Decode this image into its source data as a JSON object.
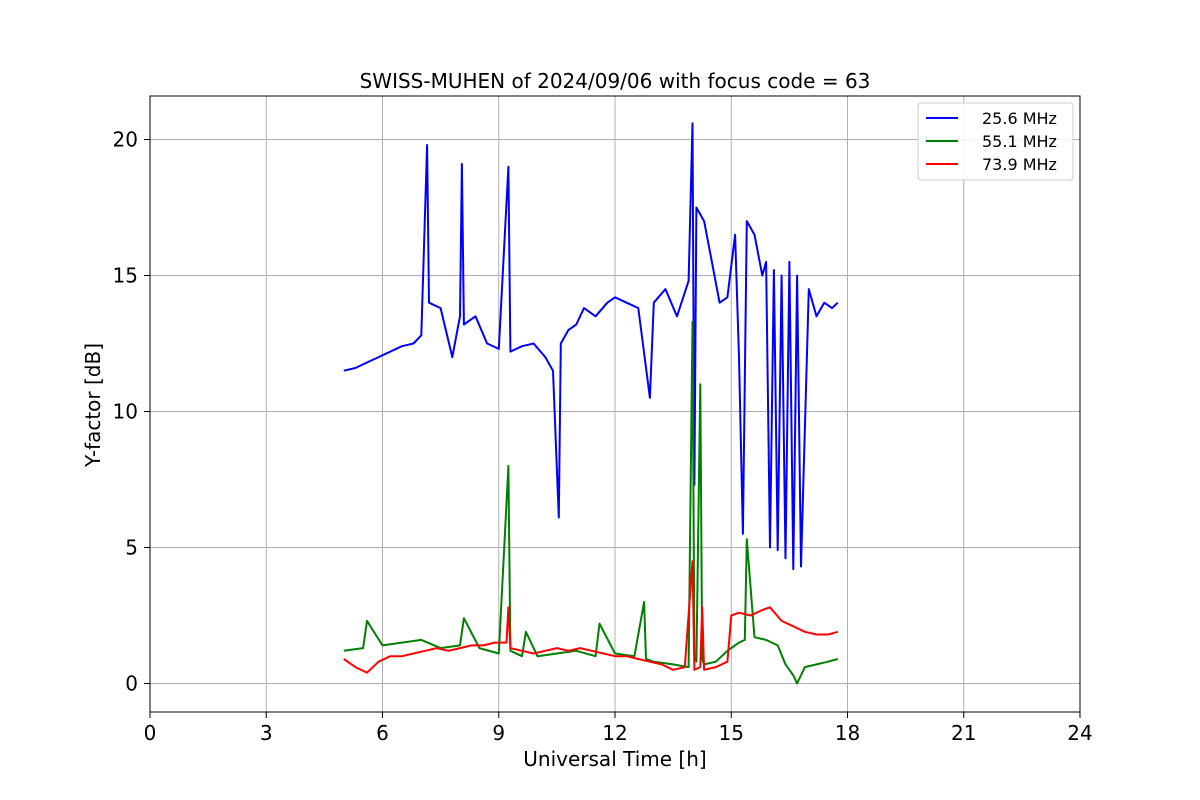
{
  "chart_data": {
    "type": "line",
    "title": "SWISS-MUHEN of 2024/09/06 with focus code = 63",
    "xlabel": "Universal Time [h]",
    "ylabel": "Y-factor [dB]",
    "xlim": [
      0,
      24
    ],
    "ylim": [
      -1.05,
      21.6
    ],
    "xticks": [
      0,
      3,
      6,
      9,
      12,
      15,
      18,
      21,
      24
    ],
    "yticks": [
      0,
      5,
      10,
      15,
      20
    ],
    "grid": true,
    "legend_position": "top-right",
    "series": [
      {
        "name": "25.6 MHz",
        "color": "#0000ff",
        "x": [
          5.0,
          5.3,
          5.6,
          5.9,
          6.2,
          6.5,
          6.8,
          7.0,
          7.15,
          7.2,
          7.5,
          7.8,
          8.0,
          8.05,
          8.1,
          8.4,
          8.7,
          9.0,
          9.25,
          9.3,
          9.6,
          9.9,
          10.2,
          10.4,
          10.55,
          10.6,
          10.8,
          11.0,
          11.2,
          11.5,
          11.8,
          12.0,
          12.3,
          12.6,
          12.9,
          13.0,
          13.3,
          13.6,
          13.9,
          14.0,
          14.05,
          14.1,
          14.3,
          14.5,
          14.7,
          14.9,
          15.1,
          15.2,
          15.3,
          15.4,
          15.6,
          15.8,
          15.9,
          16.0,
          16.1,
          16.2,
          16.3,
          16.4,
          16.5,
          16.6,
          16.7,
          16.8,
          17.0,
          17.2,
          17.4,
          17.6,
          17.75
        ],
        "y": [
          11.5,
          11.6,
          11.8,
          12.0,
          12.2,
          12.4,
          12.5,
          12.8,
          19.8,
          14.0,
          13.8,
          12.0,
          13.5,
          19.1,
          13.2,
          13.5,
          12.5,
          12.3,
          19.0,
          12.2,
          12.4,
          12.5,
          12.0,
          11.5,
          6.1,
          12.5,
          13.0,
          13.2,
          13.8,
          13.5,
          14.0,
          14.2,
          14.0,
          13.8,
          10.5,
          14.0,
          14.5,
          13.5,
          14.8,
          20.6,
          7.3,
          17.5,
          17.0,
          15.5,
          14.0,
          14.2,
          16.5,
          12.0,
          5.5,
          17.0,
          16.5,
          15.0,
          15.5,
          5.0,
          15.2,
          4.9,
          15.0,
          4.6,
          15.5,
          4.2,
          15.0,
          4.3,
          14.5,
          13.5,
          14.0,
          13.8,
          14.0
        ]
      },
      {
        "name": "55.1 MHz",
        "color": "#008000",
        "x": [
          5.0,
          5.5,
          5.6,
          6.0,
          6.5,
          7.0,
          7.5,
          8.0,
          8.1,
          8.5,
          9.0,
          9.25,
          9.3,
          9.6,
          9.7,
          10.0,
          10.5,
          11.0,
          11.5,
          11.6,
          12.0,
          12.5,
          12.75,
          12.8,
          13.0,
          13.5,
          13.9,
          14.0,
          14.05,
          14.1,
          14.2,
          14.25,
          14.3,
          14.6,
          14.9,
          15.2,
          15.35,
          15.4,
          15.6,
          15.9,
          16.2,
          16.4,
          16.6,
          16.7,
          16.9,
          17.2,
          17.5,
          17.75
        ],
        "y": [
          1.2,
          1.3,
          2.3,
          1.4,
          1.5,
          1.6,
          1.3,
          1.4,
          2.4,
          1.3,
          1.1,
          8.0,
          1.2,
          1.0,
          1.9,
          1.0,
          1.1,
          1.2,
          1.0,
          2.2,
          1.1,
          1.0,
          3.0,
          0.9,
          0.8,
          0.7,
          0.6,
          13.3,
          1.0,
          0.8,
          11.0,
          0.9,
          0.7,
          0.8,
          1.2,
          1.5,
          1.6,
          5.3,
          1.7,
          1.6,
          1.4,
          0.7,
          0.3,
          0.0,
          0.6,
          0.7,
          0.8,
          0.9
        ]
      },
      {
        "name": "73.9 MHz",
        "color": "#ff0000",
        "x": [
          5.0,
          5.3,
          5.6,
          5.9,
          6.2,
          6.5,
          6.8,
          7.1,
          7.4,
          7.7,
          8.0,
          8.3,
          8.6,
          8.9,
          9.2,
          9.25,
          9.3,
          9.6,
          9.9,
          10.2,
          10.5,
          10.8,
          11.1,
          11.4,
          11.7,
          12.0,
          12.3,
          12.6,
          12.9,
          13.2,
          13.5,
          13.8,
          14.0,
          14.05,
          14.2,
          14.25,
          14.3,
          14.6,
          14.9,
          15.0,
          15.2,
          15.5,
          15.8,
          16.0,
          16.3,
          16.6,
          16.9,
          17.2,
          17.5,
          17.75
        ],
        "y": [
          0.9,
          0.6,
          0.4,
          0.8,
          1.0,
          1.0,
          1.1,
          1.2,
          1.3,
          1.2,
          1.3,
          1.4,
          1.4,
          1.5,
          1.5,
          2.8,
          1.3,
          1.2,
          1.1,
          1.2,
          1.3,
          1.2,
          1.3,
          1.2,
          1.1,
          1.0,
          1.0,
          0.9,
          0.8,
          0.7,
          0.5,
          0.6,
          4.5,
          0.5,
          0.6,
          2.8,
          0.5,
          0.6,
          0.8,
          2.5,
          2.6,
          2.5,
          2.7,
          2.8,
          2.3,
          2.1,
          1.9,
          1.8,
          1.8,
          1.9
        ]
      }
    ]
  }
}
